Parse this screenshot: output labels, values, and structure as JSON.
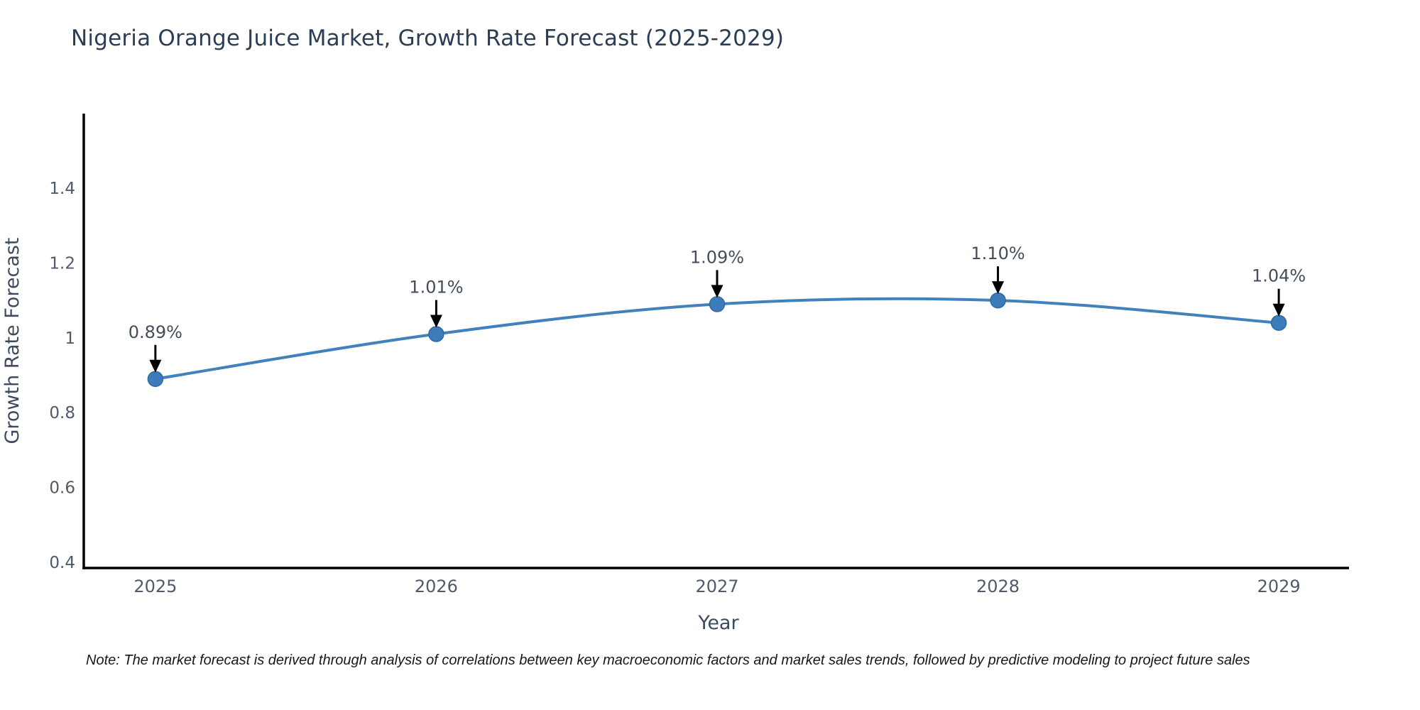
{
  "title": "Nigeria Orange Juice Market, Growth Rate Forecast (2025-2029)",
  "note": "Note: The market forecast is derived through analysis of correlations between key macroeconomic factors and market sales trends, followed by predictive modeling to project future sales",
  "chart_data": {
    "type": "line",
    "title": "Nigeria Orange Juice Market, Growth Rate Forecast (2025-2029)",
    "xlabel": "Year",
    "ylabel": "Growth Rate Forecast",
    "x": [
      2025,
      2026,
      2027,
      2028,
      2029
    ],
    "values": [
      0.89,
      1.01,
      1.09,
      1.1,
      1.04
    ],
    "point_labels": [
      "0.89%",
      "1.01%",
      "1.09%",
      "1.10%",
      "1.04%"
    ],
    "xticks": {
      "values": [
        2025,
        2026,
        2027,
        2028,
        2029
      ],
      "labels": [
        "2025",
        "2026",
        "2027",
        "2028",
        "2029"
      ]
    },
    "yticks": {
      "values": [
        0.4,
        0.6,
        0.8,
        1.0,
        1.2,
        1.4
      ],
      "labels": [
        "0.4",
        "0.6",
        "0.8",
        "1",
        "1.2",
        "1.4"
      ]
    },
    "xlim": [
      2024.745,
      2029.25
    ],
    "ylim": [
      0.3848,
      1.5993
    ],
    "grid": false,
    "legend": "none",
    "annotations": "black arrow from label pointing down to each data point",
    "line_style": "smooth",
    "colors": {
      "line": "#4282bc",
      "marker_fill": "#3c7cba",
      "marker_edge": "#2e699f",
      "axis_line": "#000000",
      "arrow": "#000000",
      "title_text": "#2c3e56",
      "tick_text": "#4f5a6b",
      "axis_label_text": "#3e4a5e",
      "annotation_text": "#434d5c",
      "note_text": "#15181d",
      "background": "#ffffff"
    }
  }
}
